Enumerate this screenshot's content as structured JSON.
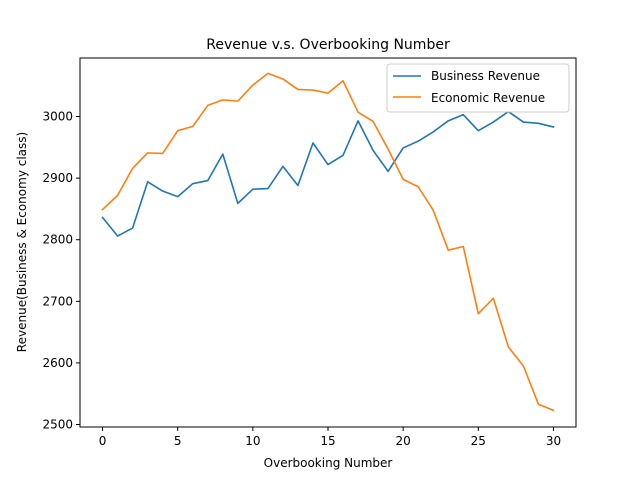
{
  "chart_data": {
    "type": "line",
    "title": "Revenue v.s. Overbooking Number",
    "xlabel": "Overbooking Number",
    "ylabel": "Revenue(Business & Economy class)",
    "xlim": [
      -1.5,
      31.5
    ],
    "ylim": [
      2496,
      3095
    ],
    "xticks": [
      0,
      5,
      10,
      15,
      20,
      25,
      30
    ],
    "yticks": [
      2500,
      2600,
      2700,
      2800,
      2900,
      3000
    ],
    "grid": false,
    "legend_position": "top-right",
    "x": [
      0,
      1,
      2,
      3,
      4,
      5,
      6,
      7,
      8,
      9,
      10,
      11,
      12,
      13,
      14,
      15,
      16,
      17,
      18,
      19,
      20,
      21,
      22,
      23,
      24,
      25,
      26,
      27,
      28,
      29,
      30
    ],
    "series": [
      {
        "name": "Business Revenue",
        "color": "#1f77b4",
        "values": [
          2836,
          2806,
          2819,
          2894,
          2879,
          2870,
          2891,
          2896,
          2939,
          2859,
          2882,
          2883,
          2919,
          2888,
          2957,
          2922,
          2937,
          2993,
          2945,
          2911,
          2949,
          2960,
          2975,
          2993,
          3003,
          2977,
          2991,
          3008,
          2991,
          2989,
          2983
        ]
      },
      {
        "name": "Economic Revenue",
        "color": "#ff7f0e",
        "values": [
          2849,
          2872,
          2916,
          2941,
          2940,
          2977,
          2984,
          3018,
          3027,
          3025,
          3051,
          3070,
          3061,
          3044,
          3043,
          3038,
          3058,
          3007,
          2992,
          2947,
          2898,
          2886,
          2848,
          2783,
          2789,
          2680,
          2705,
          2626,
          2595,
          2533,
          2523
        ]
      }
    ]
  }
}
